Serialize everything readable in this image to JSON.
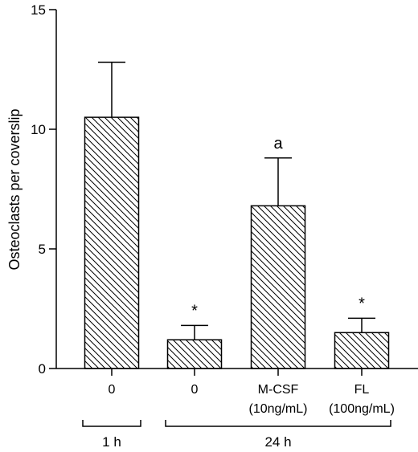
{
  "chart_data": {
    "type": "bar",
    "ylabel": "Osteoclasts per coverslip",
    "ylim": [
      0,
      15
    ],
    "yticks": [
      0,
      5,
      10,
      15
    ],
    "grid": false,
    "bar_fill": "diagonal-hatch",
    "categories": [
      {
        "label": "0",
        "sublabel": ""
      },
      {
        "label": "0",
        "sublabel": ""
      },
      {
        "label": "M-CSF",
        "sublabel": "(10ng/mL)"
      },
      {
        "label": "FL",
        "sublabel": "(100ng/mL)"
      }
    ],
    "values": [
      10.5,
      1.2,
      6.8,
      1.5
    ],
    "errors": [
      2.3,
      0.6,
      2.0,
      0.6
    ],
    "annotations": [
      "",
      "*",
      "a",
      "*"
    ],
    "groups": [
      {
        "label": "1 h",
        "from": 0,
        "to": 0
      },
      {
        "label": "24 h",
        "from": 1,
        "to": 3
      }
    ]
  }
}
